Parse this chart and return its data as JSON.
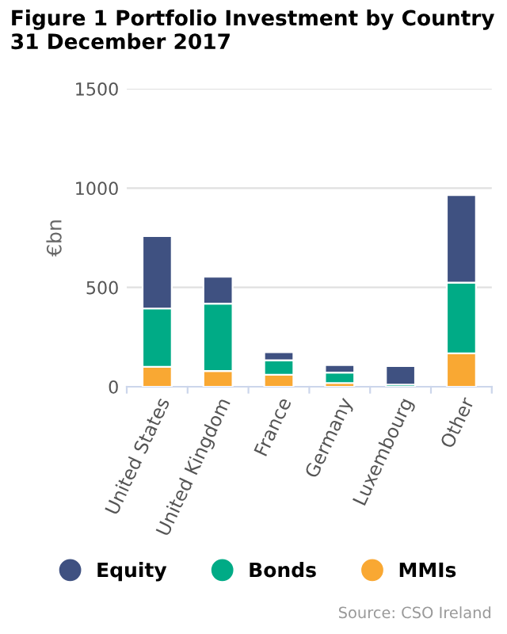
{
  "chart_data": {
    "type": "bar",
    "title": "Figure 1 Portfolio Investment by Country\n31 December 2017",
    "ylabel": "€bn",
    "categories": [
      "United States",
      "United Kingdom",
      "France",
      "Germany",
      "Luxembourg",
      "Other"
    ],
    "series": [
      {
        "name": "MMIs",
        "color": "#f9a833",
        "values": [
          100,
          79,
          60,
          19,
          null,
          168
        ]
      },
      {
        "name": "Bonds",
        "color": "#00ab86",
        "values": [
          294,
          339,
          73,
          52,
          11,
          356
        ]
      },
      {
        "name": "Equity",
        "color": "#3f5181",
        "values": [
          364,
          136,
          41,
          38,
          93,
          441
        ]
      }
    ],
    "stacked": true,
    "ylim": [
      0,
      1500
    ],
    "yticks": [
      0,
      500,
      1000,
      1500
    ],
    "grid": "y",
    "legend": "bottom",
    "annotations": [
      "Source: CSO Ireland"
    ]
  }
}
